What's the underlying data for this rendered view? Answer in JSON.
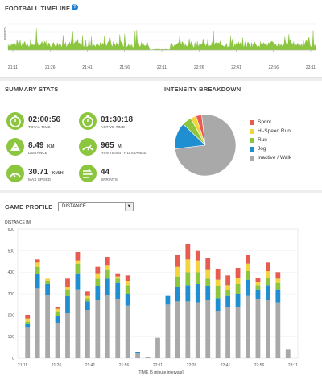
{
  "timeline": {
    "title": "FOOTBALL TIMELINE",
    "help_label": "?",
    "speed_label": "SPEED",
    "ticks": [
      "21:11",
      "21:26",
      "21:41",
      "21:56",
      "22:11",
      "22:26",
      "22:41",
      "22:56",
      "23:11"
    ],
    "color": "#8cc63f"
  },
  "summary": {
    "title": "SUMMARY STATS",
    "stats": [
      {
        "value": "02:00:56",
        "unit": "",
        "label": "TOTAL TIME",
        "icon": "stopwatch-icon"
      },
      {
        "value": "01:30:18",
        "unit": "",
        "label": "ACTIVE TIME",
        "icon": "stopwatch-icon"
      },
      {
        "value": "8.49",
        "unit": "KM",
        "label": "DISTANCE",
        "icon": "distance-icon"
      },
      {
        "value": "965",
        "unit": "M",
        "label": "HI-INTENSITY DISTANCE",
        "icon": "hi-intensity-icon"
      },
      {
        "value": "30.71",
        "unit": "KM/H",
        "label": "MAX SPEED",
        "icon": "speedometer-icon"
      },
      {
        "value": "44",
        "unit": "",
        "label": "SPRINTS",
        "icon": "sprint-icon"
      }
    ]
  },
  "intensity": {
    "title": "INTENSITY BREAKDOWN",
    "slices": [
      {
        "label": "Sprint",
        "color": "#e85b50",
        "value": 3
      },
      {
        "label": "Hi-Speed Run",
        "color": "#f3d43c",
        "value": 3
      },
      {
        "label": "Run",
        "color": "#8cc63f",
        "value": 5
      },
      {
        "label": "Jog",
        "color": "#1f8fd1",
        "value": 14
      },
      {
        "label": "Inactive / Walk",
        "color": "#a9a9a9",
        "value": 75
      }
    ]
  },
  "game": {
    "title": "GAME PROFILE",
    "select_value": "DISTANCE",
    "select_arrow": "▼",
    "ylabel": "DISTANCE [M]",
    "xlabel": "TIME [5 minute intervals]"
  },
  "chart_data": {
    "type": "bar",
    "stacked": true,
    "ylabel": "DISTANCE [M]",
    "xlabel": "TIME [5 minute intervals]",
    "ylim": [
      0,
      600
    ],
    "yticks": [
      0,
      100,
      200,
      300,
      400,
      500,
      600
    ],
    "xticks": [
      "21:11",
      "21:26",
      "21:41",
      "21:56",
      "22:11",
      "22:26",
      "22:41",
      "22:56",
      "23:11"
    ],
    "series": [
      {
        "name": "Inactive / Walk",
        "color": "#a9a9a9",
        "values": [
          145,
          325,
          295,
          165,
          210,
          320,
          225,
          270,
          295,
          275,
          245,
          25,
          5,
          95,
          250,
          265,
          265,
          260,
          270,
          220,
          240,
          240,
          290,
          275,
          270,
          260,
          40
        ]
      },
      {
        "name": "Jog",
        "color": "#1f8fd1",
        "values": [
          15,
          65,
          50,
          30,
          80,
          75,
          40,
          65,
          75,
          75,
          55,
          5,
          0,
          0,
          40,
          65,
          75,
          85,
          65,
          60,
          50,
          60,
          75,
          45,
          70,
          60,
          0
        ]
      },
      {
        "name": "Run",
        "color": "#8cc63f",
        "values": [
          10,
          35,
          15,
          20,
          30,
          45,
          15,
          35,
          40,
          20,
          40,
          0,
          0,
          0,
          0,
          50,
          60,
          55,
          35,
          55,
          25,
          45,
          40,
          20,
          35,
          30,
          0
        ]
      },
      {
        "name": "Hi-Speed Run",
        "color": "#f3d43c",
        "values": [
          15,
          20,
          10,
          15,
          10,
          15,
          10,
          25,
          20,
          10,
          20,
          0,
          0,
          0,
          0,
          45,
          60,
          55,
          40,
          30,
          25,
          30,
          35,
          15,
          30,
          20,
          0
        ]
      },
      {
        "name": "Sprint",
        "color": "#e85b50",
        "values": [
          15,
          15,
          0,
          10,
          40,
          40,
          20,
          30,
          40,
          15,
          25,
          0,
          0,
          0,
          0,
          55,
          70,
          45,
          55,
          50,
          45,
          45,
          40,
          20,
          40,
          30,
          0
        ]
      }
    ]
  }
}
